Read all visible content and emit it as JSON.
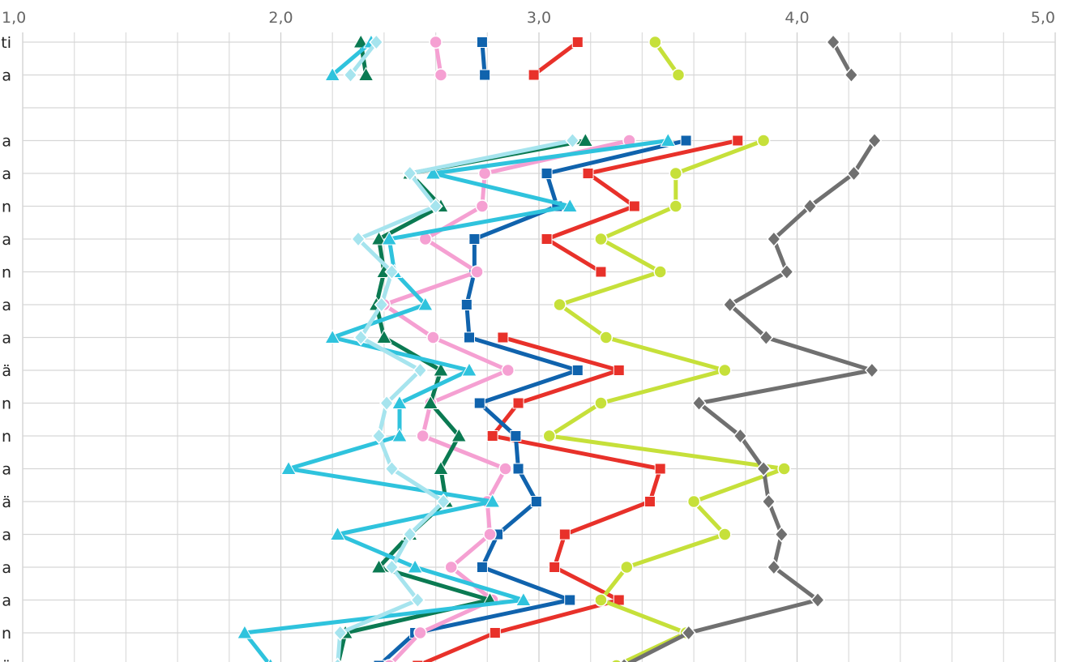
{
  "chart_data": {
    "type": "line",
    "orientation": "horizontal",
    "title": "",
    "xlabel": "",
    "ylabel": "",
    "xlim": [
      1.0,
      5.0
    ],
    "x_ticks": [
      "1,0",
      "2,0",
      "3,0",
      "4,0",
      "5,0"
    ],
    "grid": true,
    "x_axis_position": "top",
    "categories": [
      "ti",
      "a",
      "",
      "a",
      "a",
      "n",
      "a",
      "n",
      "a",
      "a",
      "ä",
      "n",
      "n",
      "a",
      "ä",
      "a",
      "a",
      "a",
      "n",
      "ä"
    ],
    "series": [
      {
        "color": "#e8312a",
        "marker": "square",
        "values": [
          3.15,
          2.98,
          null,
          3.77,
          3.19,
          3.37,
          3.03,
          3.24,
          null,
          2.86,
          3.31,
          2.92,
          2.82,
          3.47,
          3.43,
          3.1,
          3.06,
          3.31,
          2.83,
          2.53
        ]
      },
      {
        "color": "#1063ad",
        "marker": "square",
        "values": [
          2.78,
          2.79,
          null,
          3.57,
          3.03,
          3.07,
          2.75,
          2.75,
          2.72,
          2.73,
          3.15,
          2.77,
          2.91,
          2.92,
          2.99,
          2.84,
          2.78,
          3.12,
          2.52,
          2.38
        ]
      },
      {
        "color": "#c6e03a",
        "marker": "circle",
        "values": [
          3.45,
          3.54,
          null,
          3.87,
          3.53,
          3.53,
          3.24,
          3.47,
          3.08,
          3.26,
          3.72,
          3.24,
          3.04,
          3.95,
          3.6,
          3.72,
          3.34,
          3.24,
          3.57,
          3.3
        ]
      },
      {
        "color": "#707070",
        "marker": "diamond",
        "values": [
          4.14,
          4.21,
          null,
          4.3,
          4.22,
          4.05,
          3.91,
          3.96,
          3.74,
          3.88,
          4.29,
          3.62,
          3.78,
          3.87,
          3.89,
          3.94,
          3.91,
          4.08,
          3.58,
          3.33
        ]
      },
      {
        "color": "#f5a0d2",
        "marker": "circle",
        "values": [
          2.6,
          2.62,
          null,
          3.35,
          2.79,
          2.78,
          2.56,
          2.76,
          2.4,
          2.59,
          2.88,
          2.58,
          2.55,
          2.87,
          2.8,
          2.81,
          2.66,
          2.82,
          2.54,
          2.42
        ]
      },
      {
        "color": "#0b7a52",
        "marker": "triangle",
        "values": [
          2.31,
          2.33,
          null,
          3.18,
          2.5,
          2.62,
          2.38,
          2.4,
          2.37,
          2.4,
          2.62,
          2.58,
          2.69,
          2.62,
          2.64,
          2.5,
          2.38,
          2.81,
          2.25,
          2.22
        ]
      },
      {
        "color": "#2fc3dd",
        "marker": "triangle",
        "values": [
          2.35,
          2.2,
          null,
          3.5,
          2.59,
          3.12,
          2.42,
          2.44,
          2.56,
          2.2,
          2.73,
          2.46,
          2.46,
          2.03,
          2.82,
          2.22,
          2.52,
          2.94,
          1.86,
          1.96
        ]
      },
      {
        "color": "#a6e4ee",
        "marker": "diamond",
        "values": [
          2.37,
          2.27,
          null,
          3.13,
          2.5,
          2.6,
          2.3,
          2.43,
          2.39,
          2.31,
          2.54,
          2.41,
          2.38,
          2.43,
          2.63,
          2.5,
          2.43,
          2.53,
          2.23,
          2.22
        ]
      }
    ]
  }
}
